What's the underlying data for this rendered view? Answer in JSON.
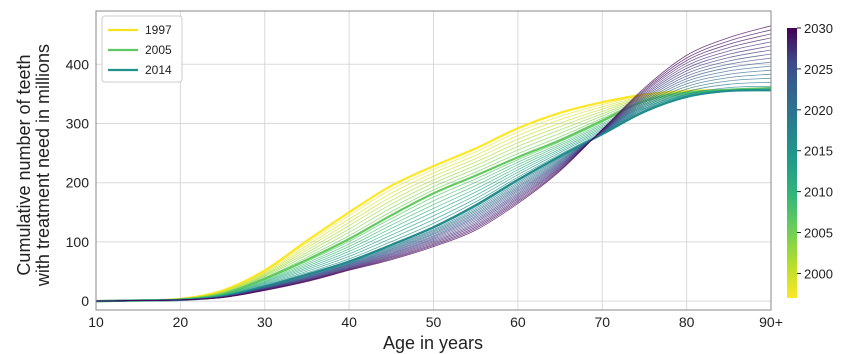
{
  "chart_data": {
    "type": "line",
    "xlabel": "Age in years",
    "ylabel_lines": [
      "Cumulative number of teeth",
      "with treatment need in millions"
    ],
    "x_tick_labels": [
      "10",
      "20",
      "30",
      "40",
      "50",
      "60",
      "70",
      "80",
      "90+"
    ],
    "x_ticks": [
      10,
      20,
      30,
      40,
      50,
      60,
      70,
      80,
      90
    ],
    "xlim": [
      10,
      90
    ],
    "y_ticks": [
      0,
      100,
      200,
      300,
      400
    ],
    "ylim": [
      -15,
      490
    ],
    "grid": true,
    "legend_position": "top-left",
    "colorbar": {
      "label_values": [
        2000,
        2005,
        2010,
        2015,
        2020,
        2025,
        2030
      ],
      "range": [
        1997,
        2030
      ],
      "colormap": "viridis"
    },
    "x": [
      10,
      15,
      20,
      25,
      30,
      35,
      40,
      45,
      50,
      55,
      60,
      65,
      70,
      75,
      80,
      85,
      90
    ],
    "series_start_year": 1997,
    "series_end_year": 2030,
    "highlighted_series": [
      {
        "name": "1997",
        "color": "#f5e11f",
        "values": [
          0,
          1,
          4,
          18,
          52,
          102,
          150,
          195,
          228,
          258,
          292,
          318,
          336,
          349,
          355,
          356,
          357
        ]
      },
      {
        "name": "2005",
        "color": "#5ec962",
        "values": [
          0,
          1,
          3,
          12,
          38,
          70,
          105,
          145,
          182,
          212,
          243,
          272,
          305,
          338,
          352,
          357,
          360
        ]
      },
      {
        "name": "2014",
        "color": "#21918c",
        "values": [
          0,
          1,
          2,
          8,
          25,
          45,
          67,
          95,
          125,
          162,
          205,
          245,
          282,
          320,
          345,
          355,
          356
        ]
      }
    ],
    "final_series": {
      "name": "2030",
      "color": "#440154",
      "values": [
        0,
        1,
        2,
        6,
        18,
        33,
        52,
        70,
        92,
        120,
        165,
        220,
        290,
        360,
        415,
        445,
        465
      ]
    }
  }
}
